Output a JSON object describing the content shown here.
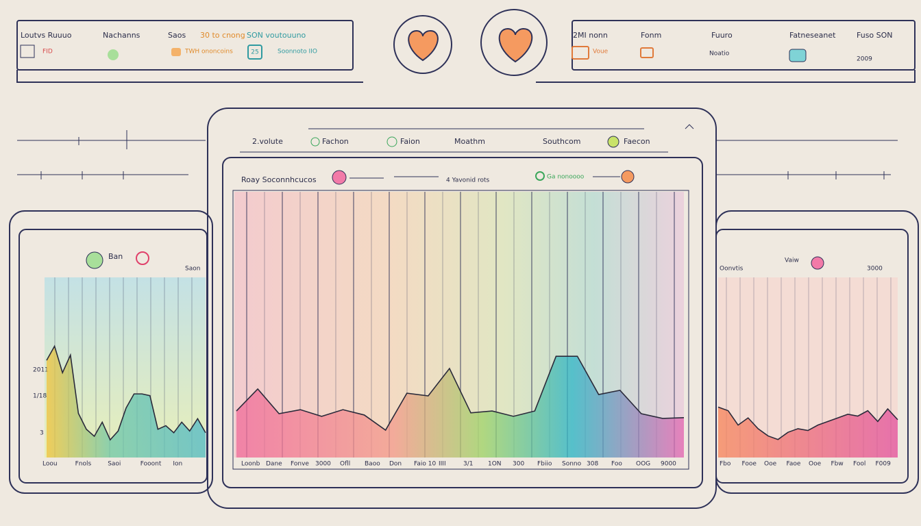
{
  "header_left": {
    "labels": [
      "Loutvs Ruuuo",
      "Nachanns",
      "Saos",
      "30 to cnong",
      "SON voutouuno"
    ],
    "sublabels": [
      "FID",
      "TWH ononcoins",
      "25",
      "Soonnoto IIO"
    ]
  },
  "header_right": {
    "labels": [
      "2MI nonn",
      "Fonm",
      "Fuuro",
      "Fatneseanet",
      "Fuso SON"
    ],
    "sublabels": [
      "Voue",
      "Noatio",
      "2009"
    ]
  },
  "main": {
    "tabs": [
      "2.volute",
      "Fachon",
      "Faion",
      "Moathm",
      "Southcom",
      "Faecon"
    ],
    "chart_title": "Roay Soconnhcucos",
    "legend": [
      "4 Yavonid rots",
      "Ga nonoooo"
    ],
    "x_labels": [
      "Loonb",
      "Dane",
      "Fonve",
      "3000",
      "Ofll",
      "Baoo",
      "Don",
      "Faio 10",
      "IIII",
      "3/1",
      "1ON",
      "300",
      "Fbiio",
      "Sonno",
      "308",
      "Foo",
      "OOG",
      "9000"
    ],
    "line": [
      17.5,
      25.8,
      16.5,
      18,
      15.5,
      18,
      16,
      10.3,
      24.2,
      23.2,
      33.5,
      16.8,
      17.5,
      15.5,
      17.5,
      38.1,
      38.1,
      23.7,
      25.3,
      16.5,
      14.7,
      15
    ]
  },
  "left_panel": {
    "legend": [
      "Ban",
      "Saon"
    ],
    "y_labels": [
      "2011",
      "1/18",
      "3"
    ],
    "x_labels": [
      "Loou",
      "Fnols",
      "Saoi",
      "Fooont",
      "Ion"
    ],
    "line": [
      55,
      63,
      48,
      58,
      25,
      16,
      12,
      20,
      10,
      15,
      28,
      36,
      36,
      35,
      16,
      18,
      14,
      20,
      15,
      22,
      14
    ]
  },
  "right_panel": {
    "legend": [
      "Oonvtis",
      "Vaiw",
      "3000"
    ],
    "x_labels": [
      "Fbo",
      "Fooe",
      "Ooe",
      "Faoe",
      "Ooe",
      "Fbw",
      "Fool",
      "F009"
    ],
    "line": [
      28,
      26,
      18,
      22,
      16,
      12,
      10,
      14,
      16,
      15,
      18,
      20,
      22,
      24,
      23,
      26,
      20,
      27,
      21
    ]
  }
}
